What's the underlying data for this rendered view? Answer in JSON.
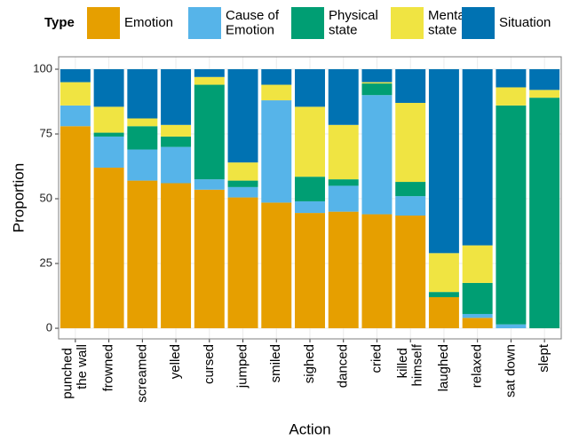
{
  "chart_data": {
    "type": "stacked_bar",
    "legend_title": "Type",
    "x_label": "Action",
    "y_label": "Proportion",
    "categories": [
      "punched\nthe wall",
      "frowned",
      "screamed",
      "yelled",
      "cursed",
      "jumped",
      "smiled",
      "sighed",
      "danced",
      "cried",
      "killed\nhimself",
      "laughed",
      "relaxed",
      "sat down",
      "slept"
    ],
    "series": [
      {
        "name": "Emotion",
        "color": "#E69F00",
        "values": [
          78,
          62,
          57,
          56,
          53.5,
          50.5,
          48.5,
          44.5,
          45,
          44,
          43.5,
          12,
          4,
          0,
          0
        ]
      },
      {
        "name": "Cause of\nEmotion",
        "color": "#56B4E9",
        "values": [
          8,
          12,
          12,
          14,
          4,
          4,
          39.5,
          4.5,
          10,
          46,
          7.5,
          0,
          1.5,
          1.5,
          0
        ]
      },
      {
        "name": "Physical\nstate",
        "color": "#009E73",
        "values": [
          0,
          1.5,
          9,
          4,
          36.5,
          2.5,
          0,
          9.5,
          2.5,
          4.5,
          5.5,
          2,
          12,
          84.5,
          89
        ]
      },
      {
        "name": "Mental\nstate",
        "color": "#F0E442",
        "values": [
          9,
          10,
          3,
          4.5,
          3,
          7,
          6,
          27,
          21,
          0.5,
          30.5,
          15,
          14.5,
          7,
          3
        ]
      },
      {
        "name": "Situation",
        "color": "#0072B2",
        "values": [
          5,
          14.5,
          19,
          21.5,
          3,
          36,
          6,
          14.5,
          21.5,
          5,
          13,
          71,
          68,
          7,
          8
        ]
      }
    ],
    "ylim": [
      -4.1,
      104.8
    ],
    "yticks": [
      0,
      25,
      50,
      75,
      100
    ],
    "grid": true
  }
}
